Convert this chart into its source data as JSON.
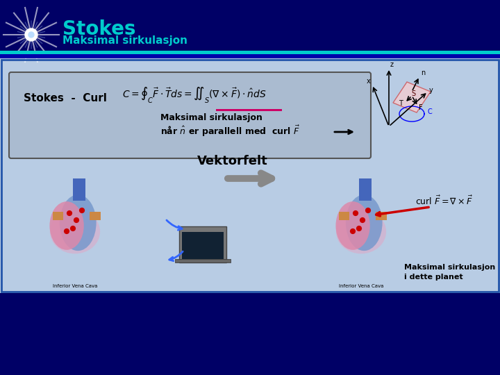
{
  "title": "Stokes",
  "subtitle": "Maksimal sirkulasjon",
  "bg_color_top": "#000066",
  "teal_color": "#00cccc",
  "stokes_curl_text": "Stokes  -  Curl",
  "annotation1": "Maksimal sirkulasjon",
  "annotation2": "når n er parallell med  curl F",
  "vektorfelt_text": "Vektorfelt",
  "bottom_annotation": "Maksimal sirkulasjon\ni dette planet",
  "arrow_color": "#808080",
  "red_arrow_color": "#cc0000",
  "pink_underline": "#cc0066",
  "content_bg": "#b8cce4",
  "formula_box_color": "#aabbd0",
  "formula_box_edge": "#555555"
}
